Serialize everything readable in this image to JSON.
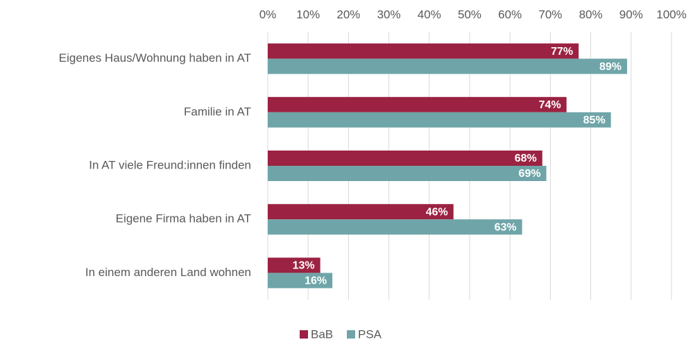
{
  "chart_data": {
    "type": "bar",
    "orientation": "horizontal",
    "categories": [
      "Eigenes Haus/Wohnung haben in AT",
      "Familie in AT",
      "In AT viele Freund:innen finden",
      "Eigene Firma haben in AT",
      "In einem anderen Land wohnen"
    ],
    "series": [
      {
        "name": "BaB",
        "color": "#9b2242",
        "values": [
          77,
          74,
          68,
          46,
          13
        ],
        "value_labels": [
          "77%",
          "74%",
          "68%",
          "46%",
          "13%"
        ]
      },
      {
        "name": "PSA",
        "color": "#6fa5a8",
        "values": [
          89,
          85,
          69,
          63,
          16
        ],
        "value_labels": [
          "89%",
          "85%",
          "69%",
          "63%",
          "16%"
        ]
      }
    ],
    "xlim": [
      0,
      100
    ],
    "xticks": [
      {
        "value": 0,
        "label": "0%"
      },
      {
        "value": 10,
        "label": "10%"
      },
      {
        "value": 20,
        "label": "20%"
      },
      {
        "value": 30,
        "label": "30%"
      },
      {
        "value": 40,
        "label": "40%"
      },
      {
        "value": 50,
        "label": "50%"
      },
      {
        "value": 60,
        "label": "60%"
      },
      {
        "value": 70,
        "label": "70%"
      },
      {
        "value": 80,
        "label": "80%"
      },
      {
        "value": 90,
        "label": "90%"
      },
      {
        "value": 100,
        "label": "100%"
      }
    ],
    "grid": true,
    "legend": "bottom"
  }
}
